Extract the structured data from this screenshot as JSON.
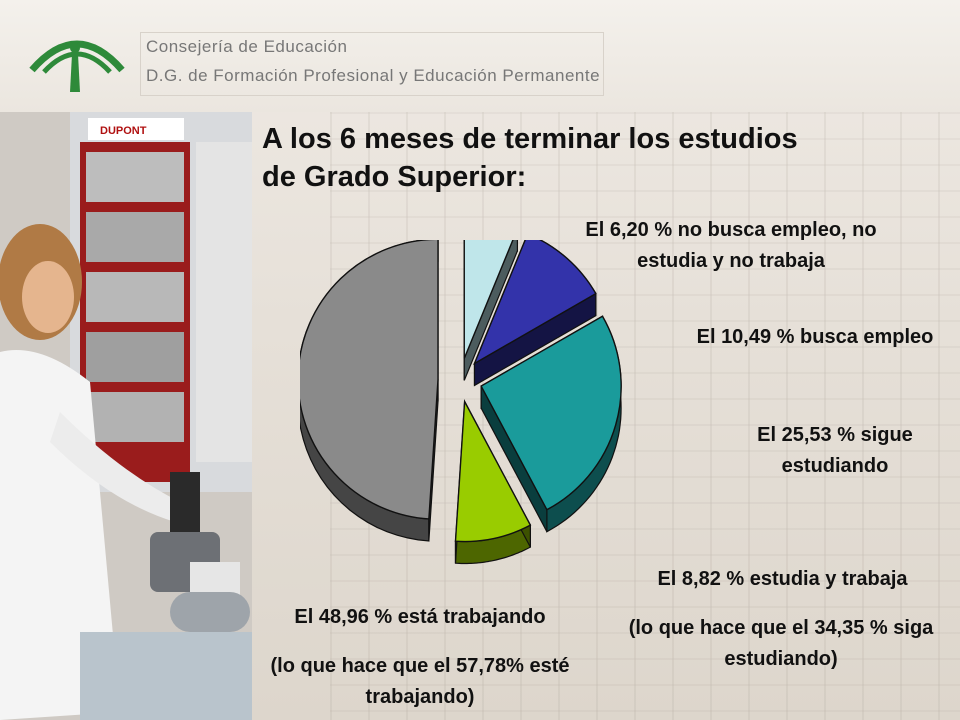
{
  "header": {
    "org_line1": "Consejería de Educación",
    "org_line2": "D.G. de Formación Profesional y Educación Permanente",
    "logo_icon": "junta-andalucia-logo-icon"
  },
  "photo": {
    "icon": "lab-worker-photo"
  },
  "title": "A los 6 meses de terminar los estudios de Grado Superior:",
  "labels": {
    "no_busca": "El 6,20 % no busca empleo, no estudia y no trabaja",
    "busca": "El 10,49 % busca empleo",
    "sigue": "El 25,53 % sigue estudiando",
    "estudia_trabaja": "El 8,82 % estudia y trabaja",
    "estudia_note": "(lo que hace que el 34,35 % siga estudiando)",
    "trabajando": "El 48,96 % está trabajando",
    "trabajando_note": "(lo que hace que el 57,78% esté trabajando)"
  },
  "chart_data": {
    "type": "pie",
    "title": "A los 6 meses de terminar los estudios de Grado Superior:",
    "slices": [
      {
        "label": "El 6,20 % no busca empleo, no estudia y no trabaja",
        "value": 6.2,
        "color": "#bfe6ea",
        "exploded": true
      },
      {
        "label": "El 10,49 % busca empleo",
        "value": 10.49,
        "color": "#3333aa",
        "exploded": true
      },
      {
        "label": "El 25,53 % sigue estudiando",
        "value": 25.53,
        "color": "#1a9b9b",
        "exploded": true
      },
      {
        "label": "El 8,82 % estudia y trabaja",
        "value": 8.82,
        "color": "#99cc00",
        "exploded": true
      },
      {
        "label": "El 48,96 % está trabajando",
        "value": 48.96,
        "color": "#8a8a8a",
        "exploded": true
      }
    ],
    "style": "3d-exploded"
  }
}
